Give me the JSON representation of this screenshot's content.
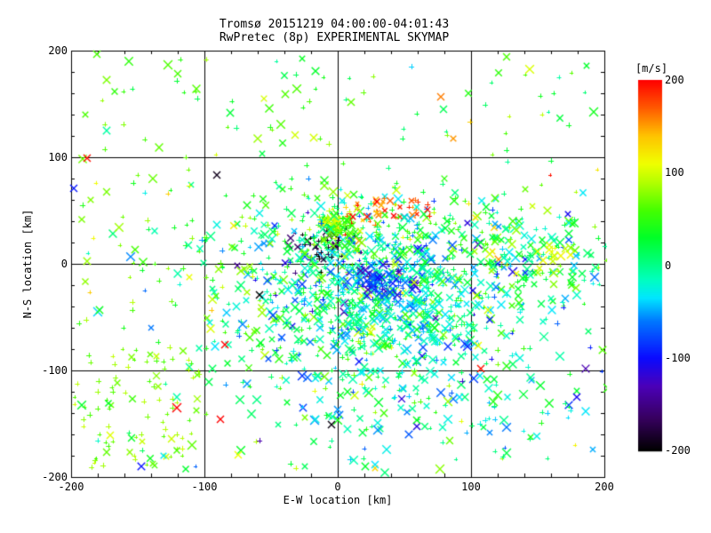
{
  "title": {
    "line1": "Tromsø 20151219 04:00:00-04:01:43",
    "line2": "RwPretec (8p) EXPERIMENTAL SKYMAP"
  },
  "colors": {
    "background": "#ffffff",
    "axis": "#000000",
    "text": "#000000"
  },
  "chart_data": {
    "type": "scatter",
    "title": "Tromsø 20151219 04:00:00-04:01:43",
    "subtitle": "RwPretec (8p) EXPERIMENTAL SKYMAP",
    "xlabel": "E-W location [km]",
    "ylabel": "N-S location [km]",
    "xlim": [
      -200,
      200
    ],
    "ylim": [
      -200,
      200
    ],
    "x_ticks": [
      -200,
      -100,
      0,
      100,
      200
    ],
    "y_ticks": [
      -200,
      -100,
      0,
      100,
      200
    ],
    "minor_tick_step": 20,
    "grid": true,
    "grid_lines_at": [
      -100,
      0,
      100
    ],
    "marker_types": [
      "plus",
      "x"
    ],
    "colorbar": {
      "label": "[m/s]",
      "min": -200,
      "max": 200,
      "ticks": [
        200,
        100,
        0,
        -100,
        -200
      ]
    },
    "colormap_stops": [
      [
        -200,
        0,
        0,
        0
      ],
      [
        -165,
        55,
        0,
        95
      ],
      [
        -130,
        75,
        0,
        185
      ],
      [
        -100,
        10,
        10,
        255
      ],
      [
        -60,
        0,
        120,
        255
      ],
      [
        -35,
        0,
        230,
        255
      ],
      [
        -15,
        0,
        255,
        190
      ],
      [
        5,
        0,
        255,
        120
      ],
      [
        30,
        0,
        255,
        40
      ],
      [
        60,
        70,
        255,
        0
      ],
      [
        90,
        180,
        255,
        0
      ],
      [
        110,
        240,
        255,
        0
      ],
      [
        140,
        255,
        195,
        0
      ],
      [
        170,
        255,
        90,
        0
      ],
      [
        200,
        255,
        0,
        0
      ]
    ],
    "render_seed": 20151219,
    "clusters": [
      {
        "name": "main-cloud",
        "count": 780,
        "dist": "gauss",
        "cx": 30,
        "cy": -32,
        "sx": 62,
        "sy": 46,
        "v": {
          "type": "gauss",
          "mean": 5,
          "sd": 55
        },
        "x_frac": 0.5,
        "size": [
          3,
          5
        ]
      },
      {
        "name": "core-cyan",
        "count": 260,
        "dist": "gauss",
        "cx": 38,
        "cy": -28,
        "sx": 32,
        "sy": 26,
        "v": {
          "type": "gauss",
          "mean": -25,
          "sd": 30
        },
        "x_frac": 0.5,
        "size": [
          3,
          5
        ]
      },
      {
        "name": "blue-knot",
        "count": 55,
        "dist": "gauss",
        "cx": 33,
        "cy": -17,
        "sx": 11,
        "sy": 9,
        "v": {
          "type": "uniform",
          "min": -135,
          "max": -60
        },
        "x_frac": 0.6,
        "size": [
          3,
          5
        ]
      },
      {
        "name": "black-knot",
        "count": 42,
        "dist": "gauss",
        "cx": -13,
        "cy": 17,
        "sx": 10,
        "sy": 9,
        "v": {
          "type": "uniform",
          "min": -215,
          "max": -150
        },
        "x_frac": 0.35,
        "size": [
          3,
          4
        ]
      },
      {
        "name": "green-knot",
        "count": 60,
        "dist": "gauss",
        "cx": 0,
        "cy": 34,
        "sx": 6,
        "sy": 7,
        "v": {
          "type": "uniform",
          "min": 25,
          "max": 90
        },
        "x_frac": 0.45,
        "size": [
          3,
          4
        ]
      },
      {
        "name": "yellow-knot",
        "count": 20,
        "dist": "gauss",
        "cx": -2,
        "cy": 43,
        "sx": 5,
        "sy": 4,
        "v": {
          "type": "uniform",
          "min": 85,
          "max": 130
        },
        "x_frac": 0.4,
        "size": [
          3,
          4
        ]
      },
      {
        "name": "red-arc",
        "count": 42,
        "dist": "arc",
        "x0": 3,
        "x1": 73,
        "y_base": 40,
        "y_lin": 0.5,
        "y_quad": -0.0045,
        "y_noise": 6,
        "v": {
          "type": "uniform",
          "min": 130,
          "max": 215
        },
        "x_frac": 0.4,
        "size": [
          2,
          4
        ]
      },
      {
        "name": "upper-band",
        "count": 190,
        "dist": "gauss",
        "cx": 25,
        "cy": 28,
        "sx": 78,
        "sy": 20,
        "v": {
          "type": "gauss",
          "mean": 25,
          "sd": 50
        },
        "x_frac": 0.5,
        "size": [
          3,
          5
        ]
      },
      {
        "name": "right-cluster",
        "count": 115,
        "dist": "gauss",
        "cx": 148,
        "cy": 3,
        "sx": 30,
        "sy": 30,
        "v": {
          "type": "gauss",
          "mean": 15,
          "sd": 45
        },
        "x_frac": 0.65,
        "size": [
          3,
          5
        ]
      },
      {
        "name": "yellow-right",
        "count": 16,
        "dist": "gauss",
        "cx": 163,
        "cy": 8,
        "sx": 10,
        "sy": 9,
        "v": {
          "type": "uniform",
          "min": 85,
          "max": 125
        },
        "x_frac": 0.7,
        "size": [
          3,
          5
        ]
      },
      {
        "name": "bottom-spread",
        "count": 140,
        "dist": "gauss",
        "cx": 55,
        "cy": -118,
        "sx": 85,
        "sy": 34,
        "v": {
          "type": "gauss",
          "mean": -15,
          "sd": 50
        },
        "x_frac": 0.55,
        "size": [
          3,
          5
        ]
      },
      {
        "name": "sw-green-field",
        "count": 88,
        "dist": "uniform",
        "x0": -198,
        "x1": -102,
        "y0": -192,
        "y1": -72,
        "v": {
          "type": "uniform",
          "min": 55,
          "max": 100
        },
        "x_frac": 0.22,
        "size": [
          3,
          4
        ]
      },
      {
        "name": "sparse-upper-left",
        "count": 75,
        "dist": "uniform",
        "x0": -198,
        "x1": 5,
        "y0": 35,
        "y1": 196,
        "v": {
          "type": "gauss",
          "mean": 55,
          "sd": 28
        },
        "x_frac": 0.45,
        "size": [
          3,
          5
        ]
      },
      {
        "name": "sparse-upper-right",
        "count": 48,
        "dist": "uniform",
        "x0": 5,
        "x1": 198,
        "y0": 35,
        "y1": 196,
        "v": {
          "type": "gauss",
          "mean": 50,
          "sd": 35
        },
        "x_frac": 0.45,
        "size": [
          3,
          5
        ]
      },
      {
        "name": "sparse-left",
        "count": 42,
        "dist": "uniform",
        "x0": -198,
        "x1": -65,
        "y0": -70,
        "y1": 35,
        "v": {
          "type": "gauss",
          "mean": 55,
          "sd": 30
        },
        "x_frac": 0.5,
        "size": [
          3,
          5
        ]
      },
      {
        "name": "sparse-bottom",
        "count": 48,
        "dist": "uniform",
        "x0": -195,
        "x1": 195,
        "y0": -196,
        "y1": -125,
        "v": {
          "type": "gauss",
          "mean": 25,
          "sd": 55
        },
        "x_frac": 0.5,
        "size": [
          3,
          5
        ]
      }
    ],
    "outliers": [
      {
        "x": -121,
        "y": -135,
        "v": 200,
        "marker": "x",
        "size": 5
      },
      {
        "x": -171,
        "y": -161,
        "v": 105,
        "marker": "x",
        "size": 4
      },
      {
        "x": -188,
        "y": 99,
        "v": 195,
        "marker": "x",
        "size": 4
      },
      {
        "x": -198,
        "y": 71,
        "v": -95,
        "marker": "x",
        "size": 4
      },
      {
        "x": -91,
        "y": 83,
        "v": -190,
        "marker": "x",
        "size": 4
      },
      {
        "x": -32,
        "y": 121,
        "v": 100,
        "marker": "x",
        "size": 4
      },
      {
        "x": 77,
        "y": 157,
        "v": 160,
        "marker": "x",
        "size": 4
      },
      {
        "x": -181,
        "y": 197,
        "v": 60,
        "marker": "x",
        "size": 4
      },
      {
        "x": 55,
        "y": 185,
        "v": -40,
        "marker": "plus",
        "size": 3
      },
      {
        "x": 159,
        "y": 83,
        "v": 195,
        "marker": "plus",
        "size": 2
      },
      {
        "x": -85,
        "y": -76,
        "v": 200,
        "marker": "x",
        "size": 4
      },
      {
        "x": -88,
        "y": -146,
        "v": 200,
        "marker": "x",
        "size": 4
      },
      {
        "x": -75,
        "y": -179,
        "v": 110,
        "marker": "x",
        "size": 4
      },
      {
        "x": -59,
        "y": -29,
        "v": -200,
        "marker": "x",
        "size": 4
      },
      {
        "x": -5,
        "y": -151,
        "v": -195,
        "marker": "x",
        "size": 4
      },
      {
        "x": 105,
        "y": -77,
        "v": 110,
        "marker": "x",
        "size": 4
      },
      {
        "x": 107,
        "y": -98,
        "v": 195,
        "marker": "x",
        "size": 4
      },
      {
        "x": 28,
        "y": -188,
        "v": -35,
        "marker": "x",
        "size": 4
      },
      {
        "x": -120,
        "y": 178,
        "v": 60,
        "marker": "x",
        "size": 4
      },
      {
        "x": -140,
        "y": -60,
        "v": -60,
        "marker": "x",
        "size": 3
      }
    ]
  }
}
